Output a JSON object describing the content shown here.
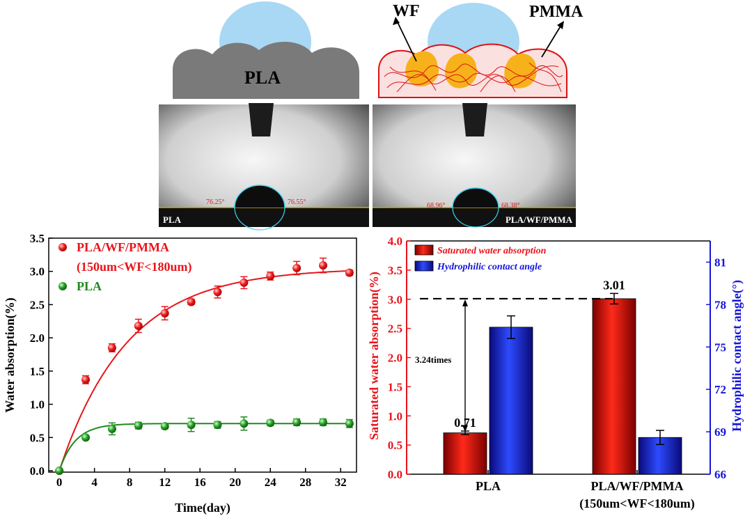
{
  "schematic": {
    "pla_label": "PLA",
    "wf_label": "WF",
    "pmma_label": "PMMA"
  },
  "photos": [
    {
      "label": "PLA",
      "angle_left": "76.25°",
      "angle_right": "76.55°"
    },
    {
      "label": "PLA/WF/PMMA",
      "angle_left": "68.96°",
      "angle_right": "68.38°"
    }
  ],
  "colors": {
    "red": "#e8141b",
    "green": "#1e8a1e",
    "blue": "#1515d9",
    "bar_red": "#d71a1a",
    "bar_blue": "#1e35e0"
  },
  "chart_data": [
    {
      "type": "scatter",
      "xlabel": "Time(day)",
      "ylabel": "Water absorption(%)",
      "xlim": [
        0,
        33
      ],
      "ylim": [
        0,
        3.5
      ],
      "xticks": [
        "0",
        "4",
        "8",
        "12",
        "16",
        "20",
        "24",
        "28",
        "32"
      ],
      "yticks": [
        "0.0",
        "0.5",
        "1.0",
        "1.5",
        "2.0",
        "2.5",
        "3.0",
        "3.5"
      ],
      "legend_line2": "(150um<WF<180um)",
      "series": [
        {
          "name": "PLA/WF/PMMA",
          "color": "#e8141b",
          "x": [
            0,
            3,
            6,
            9,
            12,
            15,
            18,
            21,
            24,
            27,
            30,
            33
          ],
          "values": [
            0.0,
            1.37,
            1.85,
            2.18,
            2.37,
            2.54,
            2.69,
            2.83,
            2.93,
            3.05,
            3.09,
            2.98
          ],
          "errors": [
            0,
            0.06,
            0.06,
            0.1,
            0.1,
            0.04,
            0.09,
            0.09,
            0.06,
            0.1,
            0.11,
            0.04
          ],
          "fit": {
            "a": 3.05,
            "k": 0.13
          }
        },
        {
          "name": "PLA",
          "color": "#1e8a1e",
          "x": [
            0,
            3,
            6,
            9,
            12,
            15,
            18,
            21,
            24,
            27,
            30,
            33
          ],
          "values": [
            0.0,
            0.5,
            0.63,
            0.68,
            0.67,
            0.69,
            0.69,
            0.71,
            0.72,
            0.73,
            0.73,
            0.71
          ],
          "errors": [
            0,
            0.03,
            0.09,
            0.05,
            0.04,
            0.1,
            0.05,
            0.1,
            0.04,
            0.05,
            0.05,
            0.06
          ],
          "fit": {
            "a": 0.71,
            "k": 0.55
          }
        }
      ]
    },
    {
      "type": "bar",
      "categories": [
        "PLA",
        "PLA/WF/PMMA"
      ],
      "category_sub": [
        "",
        "(150um<WF<180um)"
      ],
      "ylabel": "Saturated water absorption(%)",
      "ylim": [
        0,
        4.0
      ],
      "yticks": [
        "0.0",
        "0.5",
        "1.0",
        "1.5",
        "2.0",
        "2.5",
        "3.0",
        "3.5",
        "4.0"
      ],
      "y2label": "Hydrophilic contact angle(°)",
      "y2lim": [
        66,
        82.5
      ],
      "y2ticks": [
        "66",
        "69",
        "72",
        "75",
        "78",
        "81"
      ],
      "series": [
        {
          "name": "Saturated water absorption",
          "axis": "left",
          "values": [
            0.71,
            3.01
          ],
          "errors": [
            0.03,
            0.09
          ],
          "value_labels": [
            "0.71",
            "3.01"
          ]
        },
        {
          "name": "Hydrophilic contact angle",
          "axis": "right",
          "values": [
            76.4,
            68.6
          ],
          "errors": [
            0.8,
            0.5
          ]
        }
      ],
      "annotation": "3.24times"
    }
  ]
}
